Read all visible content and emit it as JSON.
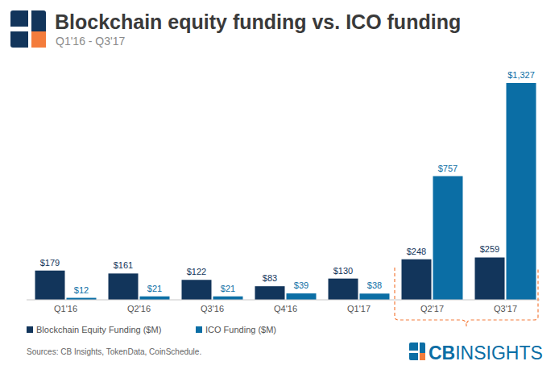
{
  "chart_data": {
    "type": "bar",
    "title": "Blockchain equity funding vs. ICO funding",
    "subtitle": "Q1'16 - Q3'17",
    "categories": [
      "Q1'16",
      "Q2'16",
      "Q3'16",
      "Q4'16",
      "Q1'17",
      "Q2'17",
      "Q3'17"
    ],
    "series": [
      {
        "name": "Blockchain Equity Funding ($M)",
        "color": "#12355b",
        "values": [
          179,
          161,
          122,
          83,
          130,
          248,
          259
        ],
        "value_labels": [
          "$179",
          "$161",
          "$122",
          "$83",
          "$130",
          "$248",
          "$259"
        ]
      },
      {
        "name": "ICO Funding ($M)",
        "color": "#0b6ea5",
        "values": [
          12,
          21,
          21,
          39,
          38,
          757,
          1327
        ],
        "value_labels": [
          "$12",
          "$21",
          "$21",
          "$39",
          "$38",
          "$757",
          "$1,327"
        ]
      }
    ],
    "ylim": [
      0,
      1400
    ],
    "tick_labels": "x",
    "data_labels": true,
    "grid": false,
    "legend": "bottom-left",
    "source": "Sources: CB Insights, TokenData, CoinSchedule.",
    "brand": [
      "CB",
      "INSIGHTS"
    ]
  }
}
